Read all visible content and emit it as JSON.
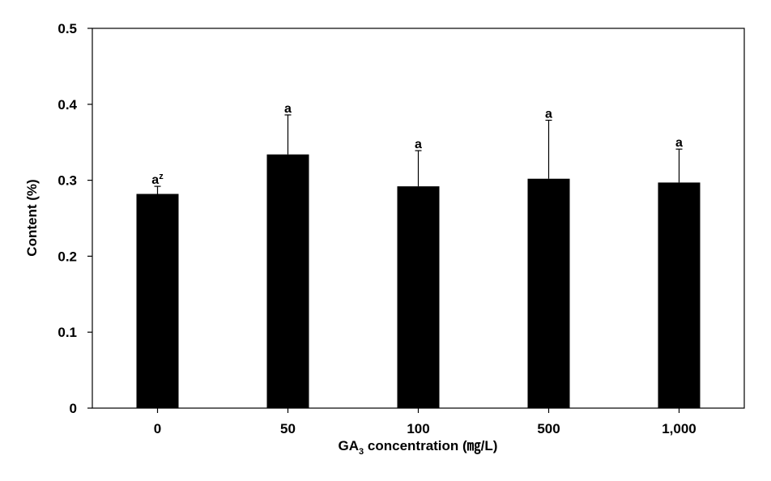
{
  "chart_data": {
    "type": "bar",
    "categories": [
      "0",
      "50",
      "100",
      "500",
      "1,000"
    ],
    "values": [
      0.282,
      0.334,
      0.292,
      0.302,
      0.297
    ],
    "errors": [
      0.01,
      0.052,
      0.047,
      0.077,
      0.044
    ],
    "significance": [
      "a",
      "a",
      "a",
      "a",
      "a"
    ],
    "significance_footnote": "z",
    "xlabel": {
      "prefix": "GA",
      "subscript": "3",
      "suffix": " concentration (㎎/L)"
    },
    "ylabel": "Content (%)",
    "ylim": [
      0,
      0.5
    ],
    "yticks": [
      "0",
      "0.1",
      "0.2",
      "0.3",
      "0.4",
      "0.5"
    ],
    "bar_color": "#000000",
    "grid": false,
    "legend": "none"
  }
}
